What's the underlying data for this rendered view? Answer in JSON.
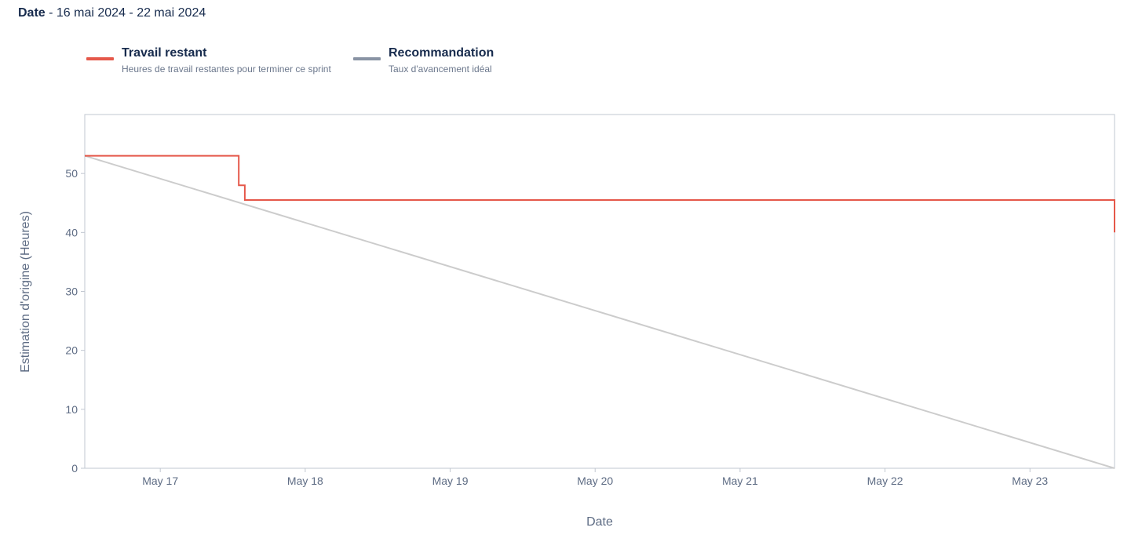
{
  "header": {
    "label": "Date",
    "range": " - 16 mai 2024 - 22 mai 2024"
  },
  "legend": {
    "items": [
      {
        "name": "Travail restant",
        "description": "Heures de travail restantes pour terminer ce sprint",
        "color": "#e5584a"
      },
      {
        "name": "Recommandation",
        "description": "Taux d'avancement idéal",
        "color": "#8993a4"
      }
    ]
  },
  "chart_data": {
    "type": "line",
    "xlabel": "Date",
    "ylabel": "Estimation d'origine (Heures)",
    "xlim": [
      "2024-05-16T11:30",
      "2024-05-23T14:00"
    ],
    "ylim": [
      0,
      60
    ],
    "yticks": [
      0,
      10,
      20,
      30,
      40,
      50
    ],
    "xticks": [
      {
        "date": "2024-05-17",
        "label": "May 17"
      },
      {
        "date": "2024-05-18",
        "label": "May 18"
      },
      {
        "date": "2024-05-19",
        "label": "May 19"
      },
      {
        "date": "2024-05-20",
        "label": "May 20"
      },
      {
        "date": "2024-05-21",
        "label": "May 21"
      },
      {
        "date": "2024-05-22",
        "label": "May 22"
      },
      {
        "date": "2024-05-23",
        "label": "May 23"
      }
    ],
    "grid": false,
    "series": [
      {
        "name": "Travail restant",
        "color": "#e5584a",
        "step": true,
        "points": [
          {
            "x": "2024-05-16T11:30",
            "y": 53
          },
          {
            "x": "2024-05-17T13:00",
            "y": 48
          },
          {
            "x": "2024-05-17T14:00",
            "y": 45.5
          },
          {
            "x": "2024-05-23T14:00",
            "y": 40
          }
        ]
      },
      {
        "name": "Recommandation",
        "color": "#cccccc",
        "step": false,
        "points": [
          {
            "x": "2024-05-16T11:30",
            "y": 53
          },
          {
            "x": "2024-05-23T14:00",
            "y": 0
          }
        ]
      }
    ]
  }
}
